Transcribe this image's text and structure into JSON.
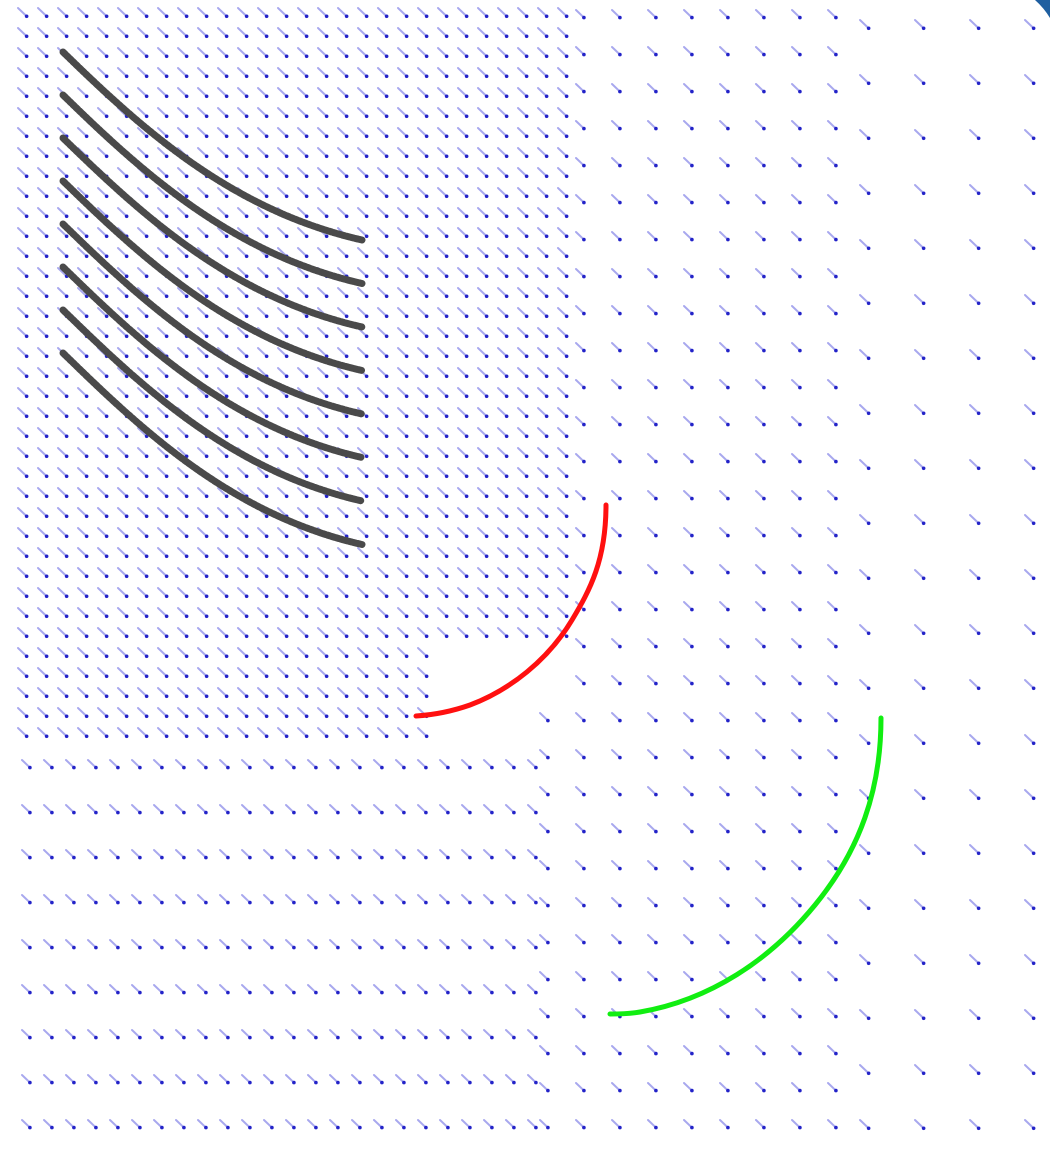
{
  "colors": {
    "background": "#ffffff",
    "arrow_shaft": "#a8a8ee",
    "arrow_head": "#2323c8",
    "streamline": "#4a4a4a",
    "curve_red": "#ff1010",
    "curve_green": "#11ee11",
    "corner_accent": "#1f5fa0"
  },
  "vector_field": {
    "description_kind": "quiver",
    "direction": "down-right",
    "zones": [
      "dense-upper-left",
      "medium-middle",
      "sparse-lower-right",
      "sparse-bottom-rows"
    ]
  },
  "streamlines": {
    "count": 8
  },
  "curves": [
    {
      "name": "red-arc",
      "color": "#ff1010"
    },
    {
      "name": "green-arc",
      "color": "#11ee11"
    }
  ]
}
